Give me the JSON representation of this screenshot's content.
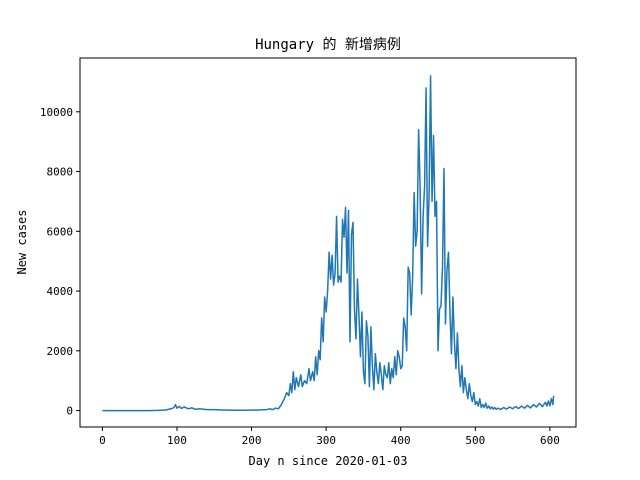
{
  "chart_data": {
    "type": "line",
    "title": "Hungary 的 新增病例",
    "xlabel": "Day n since 2020-01-03",
    "ylabel": "New cases",
    "xlim": [
      -30,
      635
    ],
    "ylim": [
      -550,
      11800
    ],
    "xticks": [
      0,
      100,
      200,
      300,
      400,
      500,
      600
    ],
    "yticks": [
      0,
      2000,
      4000,
      6000,
      8000,
      10000
    ],
    "grid": false,
    "line_color": "#1f77b4",
    "series": [
      {
        "points": [
          [
            0,
            0
          ],
          [
            20,
            0
          ],
          [
            40,
            0
          ],
          [
            60,
            0
          ],
          [
            75,
            5
          ],
          [
            85,
            20
          ],
          [
            92,
            60
          ],
          [
            96,
            100
          ],
          [
            98,
            200
          ],
          [
            100,
            80
          ],
          [
            103,
            140
          ],
          [
            106,
            70
          ],
          [
            110,
            120
          ],
          [
            115,
            60
          ],
          [
            120,
            90
          ],
          [
            125,
            40
          ],
          [
            130,
            60
          ],
          [
            140,
            30
          ],
          [
            150,
            30
          ],
          [
            160,
            20
          ],
          [
            170,
            15
          ],
          [
            180,
            10
          ],
          [
            190,
            10
          ],
          [
            200,
            15
          ],
          [
            210,
            20
          ],
          [
            220,
            30
          ],
          [
            225,
            60
          ],
          [
            228,
            30
          ],
          [
            232,
            80
          ],
          [
            236,
            60
          ],
          [
            240,
            200
          ],
          [
            244,
            400
          ],
          [
            247,
            600
          ],
          [
            250,
            500
          ],
          [
            252,
            900
          ],
          [
            254,
            600
          ],
          [
            256,
            1300
          ],
          [
            258,
            700
          ],
          [
            260,
            1100
          ],
          [
            263,
            800
          ],
          [
            266,
            1200
          ],
          [
            268,
            800
          ],
          [
            271,
            1000
          ],
          [
            274,
            900
          ],
          [
            277,
            1400
          ],
          [
            279,
            1000
          ],
          [
            282,
            1300
          ],
          [
            284,
            1000
          ],
          [
            286,
            1800
          ],
          [
            288,
            1200
          ],
          [
            290,
            2000
          ],
          [
            292,
            1700
          ],
          [
            294,
            3100
          ],
          [
            296,
            2300
          ],
          [
            298,
            3800
          ],
          [
            300,
            3300
          ],
          [
            302,
            4000
          ],
          [
            304,
            5300
          ],
          [
            306,
            4400
          ],
          [
            308,
            5200
          ],
          [
            310,
            4200
          ],
          [
            312,
            4600
          ],
          [
            314,
            6500
          ],
          [
            316,
            4300
          ],
          [
            318,
            4500
          ],
          [
            320,
            4300
          ],
          [
            322,
            6400
          ],
          [
            324,
            5800
          ],
          [
            326,
            6800
          ],
          [
            328,
            4600
          ],
          [
            330,
            6700
          ],
          [
            332,
            2300
          ],
          [
            334,
            5900
          ],
          [
            336,
            6300
          ],
          [
            338,
            3400
          ],
          [
            340,
            2400
          ],
          [
            342,
            4400
          ],
          [
            344,
            3200
          ],
          [
            346,
            1800
          ],
          [
            348,
            3300
          ],
          [
            350,
            1300
          ],
          [
            352,
            900
          ],
          [
            354,
            3000
          ],
          [
            356,
            2500
          ],
          [
            358,
            800
          ],
          [
            360,
            2800
          ],
          [
            362,
            1500
          ],
          [
            364,
            700
          ],
          [
            366,
            1900
          ],
          [
            368,
            1300
          ],
          [
            370,
            900
          ],
          [
            372,
            1600
          ],
          [
            374,
            1200
          ],
          [
            376,
            700
          ],
          [
            378,
            1500
          ],
          [
            380,
            1200
          ],
          [
            382,
            1100
          ],
          [
            384,
            1600
          ],
          [
            386,
            900
          ],
          [
            388,
            1400
          ],
          [
            390,
            1100
          ],
          [
            392,
            1800
          ],
          [
            394,
            1200
          ],
          [
            396,
            2000
          ],
          [
            398,
            1800
          ],
          [
            400,
            1400
          ],
          [
            402,
            1500
          ],
          [
            404,
            3100
          ],
          [
            406,
            2800
          ],
          [
            408,
            2000
          ],
          [
            410,
            4800
          ],
          [
            412,
            4600
          ],
          [
            414,
            3200
          ],
          [
            416,
            4500
          ],
          [
            418,
            7300
          ],
          [
            420,
            5500
          ],
          [
            422,
            6000
          ],
          [
            424,
            9400
          ],
          [
            426,
            7500
          ],
          [
            428,
            3900
          ],
          [
            430,
            6500
          ],
          [
            432,
            7500
          ],
          [
            434,
            10800
          ],
          [
            436,
            5500
          ],
          [
            438,
            7200
          ],
          [
            440,
            11200
          ],
          [
            442,
            7000
          ],
          [
            444,
            9200
          ],
          [
            446,
            6500
          ],
          [
            448,
            7000
          ],
          [
            450,
            2000
          ],
          [
            452,
            3400
          ],
          [
            454,
            3500
          ],
          [
            456,
            4800
          ],
          [
            458,
            8100
          ],
          [
            460,
            2900
          ],
          [
            462,
            4700
          ],
          [
            464,
            5300
          ],
          [
            466,
            3300
          ],
          [
            468,
            1900
          ],
          [
            470,
            3800
          ],
          [
            472,
            2300
          ],
          [
            474,
            1400
          ],
          [
            476,
            2600
          ],
          [
            478,
            1400
          ],
          [
            480,
            800
          ],
          [
            482,
            1500
          ],
          [
            484,
            600
          ],
          [
            486,
            1100
          ],
          [
            488,
            700
          ],
          [
            490,
            400
          ],
          [
            492,
            900
          ],
          [
            494,
            500
          ],
          [
            496,
            300
          ],
          [
            498,
            600
          ],
          [
            500,
            200
          ],
          [
            502,
            300
          ],
          [
            504,
            150
          ],
          [
            506,
            400
          ],
          [
            508,
            100
          ],
          [
            510,
            200
          ],
          [
            512,
            100
          ],
          [
            514,
            250
          ],
          [
            516,
            80
          ],
          [
            518,
            150
          ],
          [
            520,
            60
          ],
          [
            522,
            120
          ],
          [
            524,
            50
          ],
          [
            526,
            100
          ],
          [
            528,
            40
          ],
          [
            530,
            80
          ],
          [
            534,
            40
          ],
          [
            538,
            100
          ],
          [
            542,
            50
          ],
          [
            546,
            120
          ],
          [
            550,
            60
          ],
          [
            554,
            130
          ],
          [
            558,
            70
          ],
          [
            562,
            150
          ],
          [
            566,
            80
          ],
          [
            570,
            170
          ],
          [
            574,
            90
          ],
          [
            578,
            200
          ],
          [
            582,
            120
          ],
          [
            586,
            240
          ],
          [
            590,
            130
          ],
          [
            594,
            280
          ],
          [
            596,
            150
          ],
          [
            598,
            320
          ],
          [
            600,
            160
          ],
          [
            602,
            400
          ],
          [
            604,
            200
          ],
          [
            605,
            500
          ]
        ]
      }
    ]
  }
}
